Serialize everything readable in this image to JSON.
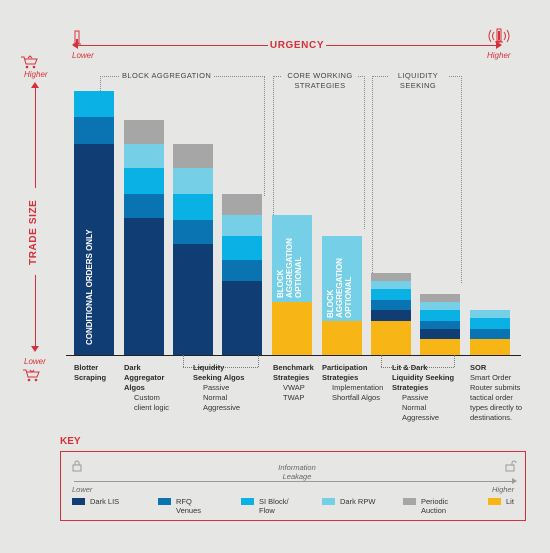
{
  "urgency": {
    "title": "URGENCY",
    "lower": "Lower",
    "higher": "Higher"
  },
  "trade_size": {
    "title": "TRADE SIZE",
    "higher": "Higher",
    "lower": "Lower"
  },
  "groups": {
    "block_aggregation": "BLOCK AGGREGATION",
    "core_working": [
      "CORE WORKING",
      "STRATEGIES"
    ],
    "liquidity_seeking": [
      "LIQUIDITY",
      "SEEKING"
    ]
  },
  "colors": {
    "dark_lis": "#0f3d74",
    "rfq": "#0a74b2",
    "si_block": "#0ab1e4",
    "dark_rpw": "#75cfe6",
    "periodic_auction": "#a6a6a6",
    "lit": "#f8b516",
    "accent": "#d8303a"
  },
  "bars": [
    {
      "segments": [
        [
          "dark_lis",
          0.8
        ],
        [
          "rfq",
          0.1
        ],
        [
          "si_block",
          0.1
        ]
      ],
      "total": 1.0,
      "overlay": [
        "CONDITIONAL ORDERS ONLY"
      ]
    },
    {
      "segments": [
        [
          "dark_lis",
          0.52
        ],
        [
          "rfq",
          0.09
        ],
        [
          "si_block",
          0.1
        ],
        [
          "dark_rpw",
          0.09
        ],
        [
          "periodic_auction",
          0.09
        ]
      ],
      "total": 0.89,
      "overlay": []
    },
    {
      "segments": [
        [
          "dark_lis",
          0.42
        ],
        [
          "rfq",
          0.09
        ],
        [
          "si_block",
          0.1
        ],
        [
          "dark_rpw",
          0.1
        ],
        [
          "periodic_auction",
          0.09
        ]
      ],
      "total": 0.8,
      "overlay": []
    },
    {
      "segments": [
        [
          "dark_lis",
          0.28
        ],
        [
          "rfq",
          0.08
        ],
        [
          "si_block",
          0.09
        ],
        [
          "dark_rpw",
          0.08
        ],
        [
          "periodic_auction",
          0.08
        ]
      ],
      "total": 0.61,
      "overlay": []
    },
    {
      "segments": [
        [
          "lit",
          0.2
        ],
        [
          "dark_rpw",
          0.33
        ]
      ],
      "total": 0.53,
      "overlay": [
        "BLOCK",
        "AGGREGATION",
        "OPTIONAL"
      ]
    },
    {
      "segments": [
        [
          "lit",
          0.13
        ],
        [
          "dark_rpw",
          0.32
        ]
      ],
      "total": 0.45,
      "overlay": [
        "BLOCK",
        "AGGREGATION",
        "OPTIONAL"
      ]
    },
    {
      "segments": [
        [
          "lit",
          0.13
        ],
        [
          "dark_lis",
          0.04
        ],
        [
          "rfq",
          0.04
        ],
        [
          "si_block",
          0.04
        ],
        [
          "dark_rpw",
          0.03
        ],
        [
          "periodic_auction",
          0.03
        ]
      ],
      "total": 0.31,
      "overlay": []
    },
    {
      "segments": [
        [
          "lit",
          0.06
        ],
        [
          "dark_lis",
          0.04
        ],
        [
          "rfq",
          0.03
        ],
        [
          "si_block",
          0.04
        ],
        [
          "dark_rpw",
          0.03
        ],
        [
          "periodic_auction",
          0.03
        ]
      ],
      "total": 0.23,
      "overlay": []
    },
    {
      "segments": [
        [
          "lit",
          0.06
        ],
        [
          "rfq",
          0.04
        ],
        [
          "si_block",
          0.04
        ],
        [
          "dark_rpw",
          0.03
        ]
      ],
      "total": 0.17,
      "overlay": []
    }
  ],
  "categories": [
    {
      "title": [
        "Blotter",
        "Scraping"
      ],
      "sub": []
    },
    {
      "title": [
        "Dark",
        "Aggregator",
        "Algos"
      ],
      "sub": [
        "Custom",
        "client logic"
      ]
    },
    {
      "title": [
        "Liquidity",
        "Seeking Algos"
      ],
      "sub": [
        "Passive",
        "Normal",
        "Aggressive"
      ]
    },
    {
      "title": [
        "Benchmark",
        "Strategies"
      ],
      "sub": [
        "VWAP",
        "TWAP"
      ]
    },
    {
      "title": [
        "Participation",
        "Strategies"
      ],
      "sub": [
        "Implementation",
        "Shortfall Algos"
      ]
    },
    {
      "title": [
        "Lit & Dark",
        "Liquidity Seeking",
        "Strategies"
      ],
      "sub": [
        "Passive",
        "Normal",
        "Aggressive"
      ]
    },
    {
      "title": [
        "SOR"
      ],
      "sub": [
        "Smart Order",
        "Router submits",
        "tactical order",
        "types directly to",
        "destinations."
      ]
    }
  ],
  "key": {
    "title": "KEY",
    "info_leakage": [
      "Information",
      "Leakage"
    ],
    "lower": "Lower",
    "higher": "Higher",
    "items": [
      {
        "label": [
          "Dark LIS"
        ],
        "color": "dark_lis"
      },
      {
        "label": [
          "RFQ",
          "Venues"
        ],
        "color": "rfq"
      },
      {
        "label": [
          "SI Block/",
          "Flow"
        ],
        "color": "si_block"
      },
      {
        "label": [
          "Dark RPW"
        ],
        "color": "dark_rpw"
      },
      {
        "label": [
          "Periodic",
          "Auction"
        ],
        "color": "periodic_auction"
      },
      {
        "label": [
          "Lit"
        ],
        "color": "lit"
      }
    ]
  }
}
